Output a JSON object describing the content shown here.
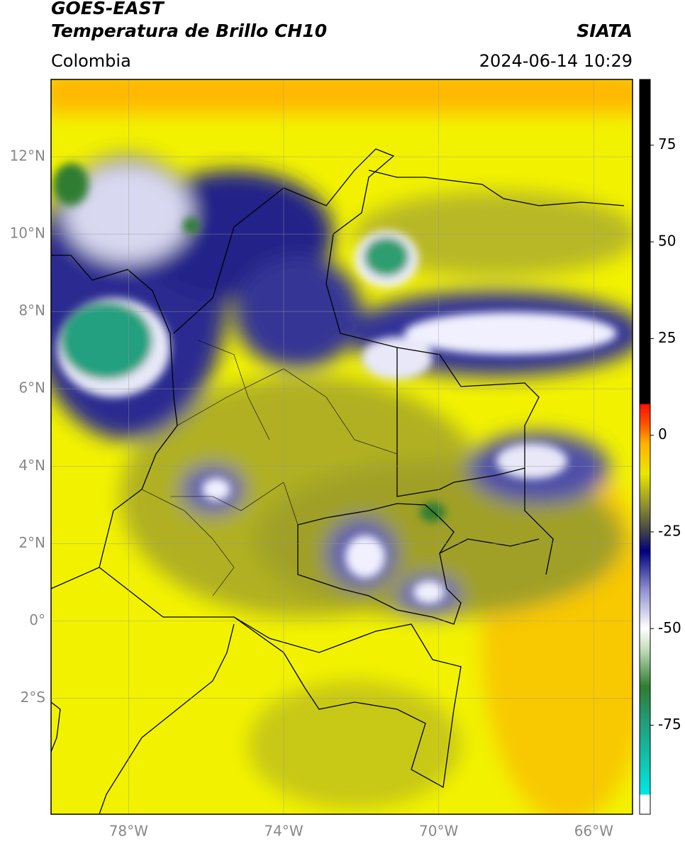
{
  "header": {
    "title": "GOES-EAST",
    "subtitle": "Temperatura de Brillo CH10",
    "region": "Colombia",
    "source": "SIATA",
    "datetime": "2024-06-14 10:29"
  },
  "map": {
    "xlim": [
      -80,
      -65
    ],
    "ylim": [
      -5,
      14
    ],
    "grid": true,
    "xticks": [
      {
        "value": -78,
        "label": "78°W"
      },
      {
        "value": -74,
        "label": "74°W"
      },
      {
        "value": -70,
        "label": "70°W"
      },
      {
        "value": -66,
        "label": "66°W"
      }
    ],
    "yticks": [
      {
        "value": 12,
        "label": "12°N"
      },
      {
        "value": 10,
        "label": "10°N"
      },
      {
        "value": 8,
        "label": "8°N"
      },
      {
        "value": 6,
        "label": "6°N"
      },
      {
        "value": 4,
        "label": "4°N"
      },
      {
        "value": 2,
        "label": "2°N"
      },
      {
        "value": 0,
        "label": "0°"
      },
      {
        "value": -2,
        "label": "2°S"
      }
    ]
  },
  "colorbar": {
    "clim": [
      -98,
      92
    ],
    "ticks": [
      75,
      50,
      25,
      0,
      -25,
      -50,
      -75
    ],
    "colormap": [
      [
        -98,
        "#ffffff"
      ],
      [
        -93,
        "#ffffff"
      ],
      [
        -92.9,
        "#00e8e8"
      ],
      [
        -85,
        "#10c8b0"
      ],
      [
        -75,
        "#20a080"
      ],
      [
        -65,
        "#2e7d32"
      ],
      [
        -55,
        "#c8e0c0"
      ],
      [
        -50,
        "#ffffff"
      ],
      [
        -40,
        "#9090d0"
      ],
      [
        -30,
        "#000080"
      ],
      [
        -25,
        "#404048"
      ],
      [
        -18,
        "#909030"
      ],
      [
        -10,
        "#e8e800"
      ],
      [
        -2,
        "#ffb000"
      ],
      [
        3,
        "#ff5000"
      ],
      [
        8,
        "#ff1000"
      ],
      [
        8.1,
        "#000000"
      ],
      [
        92,
        "#000000"
      ]
    ]
  }
}
